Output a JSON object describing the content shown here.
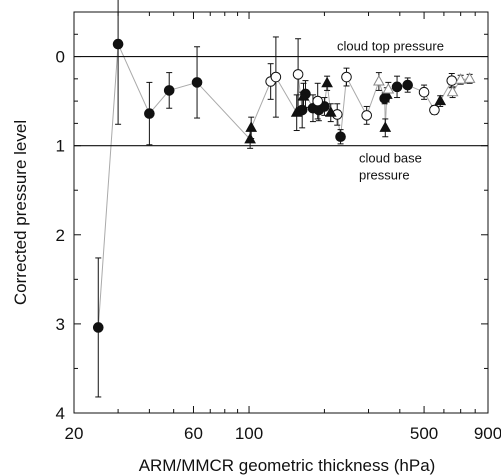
{
  "chart_data": {
    "type": "scatter",
    "title": "",
    "xlabel": "ARM/MMCR geometric thickness (hPa)",
    "ylabel": "Corrected pressure level",
    "x_scale": "log",
    "xlim": [
      20,
      900
    ],
    "ylim": [
      4,
      -0.5
    ],
    "y_inverted": true,
    "x_ticks": [
      20,
      60,
      100,
      500,
      900
    ],
    "y_ticks": [
      0,
      1,
      2,
      3,
      4
    ],
    "grid": false,
    "reference_lines": [
      {
        "y": 0,
        "label": "cloud top pressure"
      },
      {
        "y": 1,
        "label_lines": [
          "cloud base",
          "pressure"
        ]
      }
    ],
    "connecting_line_color": "#aaaaaa",
    "series": [
      {
        "marker": "filled-circle",
        "color": "#111111",
        "points": [
          {
            "x": 25,
            "y": 3.04,
            "err": 0.78
          },
          {
            "x": 30,
            "y": -0.14,
            "err": 0.9
          },
          {
            "x": 40,
            "y": 0.64,
            "err": 0.35
          },
          {
            "x": 48,
            "y": 0.38,
            "err": 0.2
          },
          {
            "x": 62,
            "y": 0.29,
            "err": 0.4
          },
          {
            "x": 163,
            "y": 0.6,
            "err": 0.2
          },
          {
            "x": 168,
            "y": 0.42,
            "err": 0.15
          },
          {
            "x": 180,
            "y": 0.58,
            "err": 0.15
          },
          {
            "x": 190,
            "y": 0.6,
            "err": 0.12
          },
          {
            "x": 200,
            "y": 0.56,
            "err": 0.1
          },
          {
            "x": 232,
            "y": 0.9,
            "err": 0.08
          },
          {
            "x": 348,
            "y": 0.47,
            "err": 0.06
          },
          {
            "x": 390,
            "y": 0.34,
            "err": 0.12
          },
          {
            "x": 430,
            "y": 0.32,
            "err": 0.08
          }
        ]
      },
      {
        "marker": "open-circle",
        "color": "#111111",
        "points": [
          {
            "x": 122,
            "y": 0.28,
            "err": 0.2
          },
          {
            "x": 128,
            "y": 0.23,
            "err": 0.45
          },
          {
            "x": 157,
            "y": 0.2,
            "err": 0.4
          },
          {
            "x": 188,
            "y": 0.5,
            "err": 0.2
          },
          {
            "x": 225,
            "y": 0.65,
            "err": 0.12
          },
          {
            "x": 245,
            "y": 0.23,
            "err": 0.1
          },
          {
            "x": 295,
            "y": 0.66,
            "err": 0.1
          },
          {
            "x": 500,
            "y": 0.4,
            "err": 0.08
          },
          {
            "x": 550,
            "y": 0.6,
            "err": 0.05
          },
          {
            "x": 645,
            "y": 0.27,
            "err": 0.08
          }
        ]
      },
      {
        "marker": "filled-triangle",
        "color": "#111111",
        "points": [
          {
            "x": 101,
            "y": 0.93,
            "err": 0.1
          },
          {
            "x": 102,
            "y": 0.8,
            "err": 0.12
          },
          {
            "x": 155,
            "y": 0.63,
            "err": 0.2
          },
          {
            "x": 165,
            "y": 0.45,
            "err": 0.15
          },
          {
            "x": 205,
            "y": 0.3,
            "err": 0.08
          },
          {
            "x": 212,
            "y": 0.63,
            "err": 0.1
          },
          {
            "x": 350,
            "y": 0.8,
            "err": 0.1
          },
          {
            "x": 355,
            "y": 0.43,
            "err": 0.08
          },
          {
            "x": 580,
            "y": 0.5,
            "err": 0.06
          }
        ]
      },
      {
        "marker": "open-triangle",
        "color": "#888888",
        "points": [
          {
            "x": 330,
            "y": 0.28,
            "err": 0.1
          },
          {
            "x": 360,
            "y": 0.37,
            "err": 0.08
          },
          {
            "x": 650,
            "y": 0.4,
            "err": 0.06
          },
          {
            "x": 700,
            "y": 0.26,
            "err": 0.05
          },
          {
            "x": 760,
            "y": 0.25,
            "err": 0.05
          }
        ]
      }
    ]
  }
}
